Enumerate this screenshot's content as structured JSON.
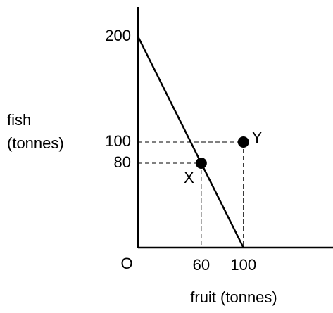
{
  "chart_data": {
    "type": "line",
    "x_label": "fruit (tonnes)",
    "y_label": [
      "fish",
      "(tonnes)"
    ],
    "origin_label": "O",
    "xlim": [
      0,
      185
    ],
    "ylim": [
      0,
      228
    ],
    "xticks": [
      60,
      100
    ],
    "yticks": [
      80,
      100,
      200
    ],
    "series": [
      {
        "x": [
          0,
          100
        ],
        "values": [
          200,
          0
        ],
        "color": "#000000"
      }
    ],
    "points": [
      {
        "label": "X",
        "x": 60,
        "y": 80
      },
      {
        "label": "Y",
        "x": 100,
        "y": 100
      }
    ],
    "point_color": "#000000",
    "guides": true
  }
}
